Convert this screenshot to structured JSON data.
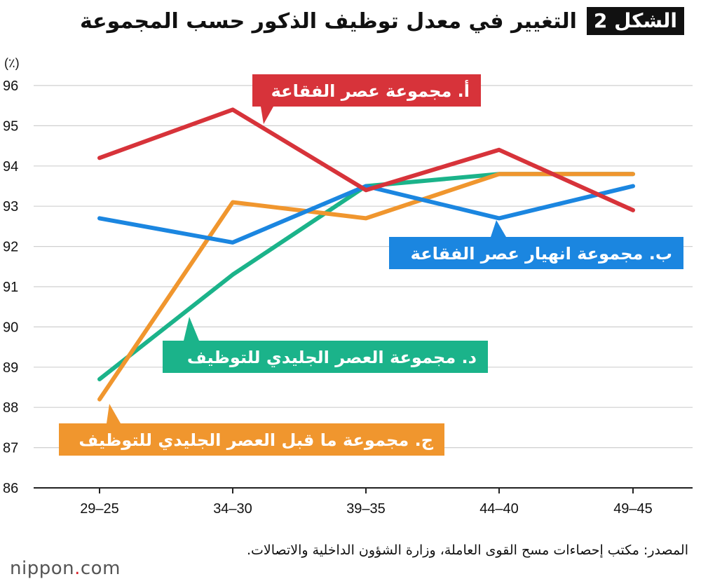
{
  "header": {
    "figure_label": "الشكل 2",
    "title": "التغيير في معدل توظيف الذكور حسب المجموعة"
  },
  "chart_data": {
    "type": "line",
    "title": "التغيير في معدل توظيف الذكور حسب المجموعة",
    "ylabel": "(٪)",
    "xlabel": "",
    "categories": [
      "29–25",
      "34–30",
      "39–35",
      "44–40",
      "49–45"
    ],
    "ylim": [
      86,
      96
    ],
    "yticks": [
      86,
      87,
      88,
      89,
      90,
      91,
      92,
      93,
      94,
      95,
      96
    ],
    "grid": "horizontal",
    "series": [
      {
        "name": "أ. مجموعة عصر الفقاعة",
        "color": "#d7333a",
        "values": [
          94.2,
          95.4,
          93.4,
          94.4,
          92.9
        ]
      },
      {
        "name": "ب. مجموعة انهيار عصر الفقاعة",
        "color": "#1b86e0",
        "values": [
          92.7,
          92.1,
          93.5,
          92.7,
          93.5
        ]
      },
      {
        "name": "ج. مجموعة ما قبل العصر الجليدي للتوظيف",
        "color": "#f0962e",
        "values": [
          88.2,
          93.1,
          92.7,
          93.8,
          93.8
        ]
      },
      {
        "name": "د. مجموعة العصر الجليدي للتوظيف",
        "color": "#1bb38a",
        "values": [
          88.7,
          91.3,
          93.5,
          93.8,
          93.8
        ]
      }
    ]
  },
  "source": "المصدر: مكتب إحصاءات مسح القوى العاملة، وزارة الشؤون الداخلية والاتصالات.",
  "logo": {
    "prefix": "nippon",
    "dot": ".",
    "suffix": "com"
  }
}
